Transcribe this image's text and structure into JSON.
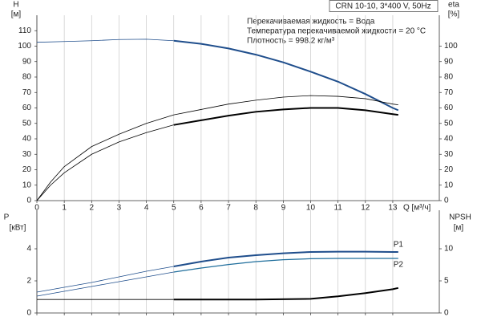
{
  "chart_data": [
    {
      "type": "line",
      "title": "CRN 10-10, 3*400 V, 50Hz",
      "notes": [
        "Перекачиваемая жидкость = Вода",
        "Температура перекачиваемой жидкости = 20 °C",
        "Плотность = 998.2 кг/м³"
      ],
      "ylabel": "H",
      "yunit": "[м]",
      "y2label": "eta",
      "y2unit": "[%]",
      "xlabel": "Q [м³/ч]",
      "xlim": [
        0,
        14.7
      ],
      "xticks": [
        0,
        1,
        2,
        3,
        4,
        5,
        6,
        7,
        8,
        9,
        10,
        11,
        12,
        13
      ],
      "xtick_labels": true,
      "ylim": [
        0,
        120
      ],
      "yticks": [
        0,
        10,
        20,
        30,
        40,
        50,
        60,
        70,
        80,
        90,
        100,
        110
      ],
      "y2lim": [
        0,
        120
      ],
      "y2ticks": [
        0,
        10,
        20,
        30,
        40,
        50,
        60,
        70,
        80,
        90,
        100
      ],
      "grid": "x",
      "series": [
        {
          "color": "#1f4e8c",
          "width": 0.8,
          "x": [
            0,
            1,
            2,
            3,
            4,
            5
          ],
          "values": [
            102.5,
            103,
            103.5,
            104.3,
            104.5,
            103.5
          ]
        },
        {
          "color": "#1f4e8c",
          "width": 2,
          "x": [
            5,
            6,
            7,
            8,
            9,
            10,
            11,
            12,
            13,
            13.2
          ],
          "values": [
            103.5,
            101.5,
            98.5,
            94.5,
            89.5,
            83.5,
            77,
            69,
            60,
            58.5
          ]
        },
        {
          "color": "#000000",
          "width": 0.8,
          "axis": "y2",
          "x": [
            0,
            0.5,
            1,
            2,
            3,
            4,
            5,
            6,
            7,
            8,
            9,
            10,
            11,
            12,
            13,
            13.2
          ],
          "values": [
            0,
            12,
            22,
            35,
            43,
            50,
            55.5,
            59,
            62.5,
            65,
            67,
            68,
            67.5,
            66,
            62.5,
            62
          ]
        },
        {
          "color": "#000000",
          "width": 0.8,
          "axis": "y2",
          "x": [
            0,
            0.5,
            1,
            2,
            3,
            4,
            5
          ],
          "values": [
            0,
            10,
            18,
            30,
            38,
            44,
            49
          ]
        },
        {
          "color": "#000000",
          "width": 2,
          "axis": "y2",
          "x": [
            5,
            6,
            7,
            8,
            9,
            10,
            11,
            12,
            13,
            13.2
          ],
          "values": [
            49,
            52,
            55,
            57.5,
            59,
            60,
            60,
            58.5,
            56,
            55.5
          ]
        }
      ]
    },
    {
      "type": "line",
      "ylabel": "P",
      "yunit": "[кВт]",
      "y2label": "NPSH",
      "y2unit": "[м]",
      "xlim": [
        0,
        14.7
      ],
      "xticks": [
        0,
        1,
        2,
        3,
        4,
        5,
        6,
        7,
        8,
        9,
        10,
        11,
        12,
        13
      ],
      "xtick_labels": false,
      "ylim": [
        0,
        6.4
      ],
      "yticks": [
        0,
        2,
        4
      ],
      "y2lim": [
        0,
        16
      ],
      "y2ticks": [
        0,
        5,
        10
      ],
      "grid": "x",
      "series": [
        {
          "color": "#1f4e8c",
          "width": 0.8,
          "x": [
            0,
            1,
            2,
            3,
            4,
            5
          ],
          "values": [
            1.3,
            1.6,
            1.9,
            2.25,
            2.6,
            2.9
          ]
        },
        {
          "label": "P1",
          "color": "#1f4e8c",
          "width": 2,
          "x": [
            5,
            6,
            7,
            8,
            9,
            10,
            11,
            12,
            13,
            13.2
          ],
          "values": [
            2.9,
            3.2,
            3.45,
            3.6,
            3.72,
            3.8,
            3.82,
            3.82,
            3.8,
            3.8
          ]
        },
        {
          "color": "#1f4e8c",
          "width": 0.8,
          "x": [
            0,
            1,
            2,
            3,
            4,
            5
          ],
          "values": [
            1.05,
            1.35,
            1.65,
            1.95,
            2.25,
            2.55
          ]
        },
        {
          "label": "P2",
          "color": "#1f6e9c",
          "width": 1.2,
          "x": [
            5,
            6,
            7,
            8,
            9,
            10,
            11,
            12,
            13,
            13.2
          ],
          "values": [
            2.55,
            2.8,
            3.02,
            3.2,
            3.32,
            3.38,
            3.4,
            3.4,
            3.4,
            3.4
          ]
        },
        {
          "color": "#000000",
          "width": 0.8,
          "axis": "y2",
          "x": [
            0,
            5
          ],
          "values": [
            2.1,
            2.1
          ]
        },
        {
          "color": "#000000",
          "width": 2,
          "axis": "y2",
          "x": [
            5,
            8,
            10,
            11,
            12,
            13,
            13.2
          ],
          "values": [
            2.1,
            2.1,
            2.2,
            2.6,
            3.1,
            3.7,
            3.9
          ]
        }
      ]
    }
  ]
}
